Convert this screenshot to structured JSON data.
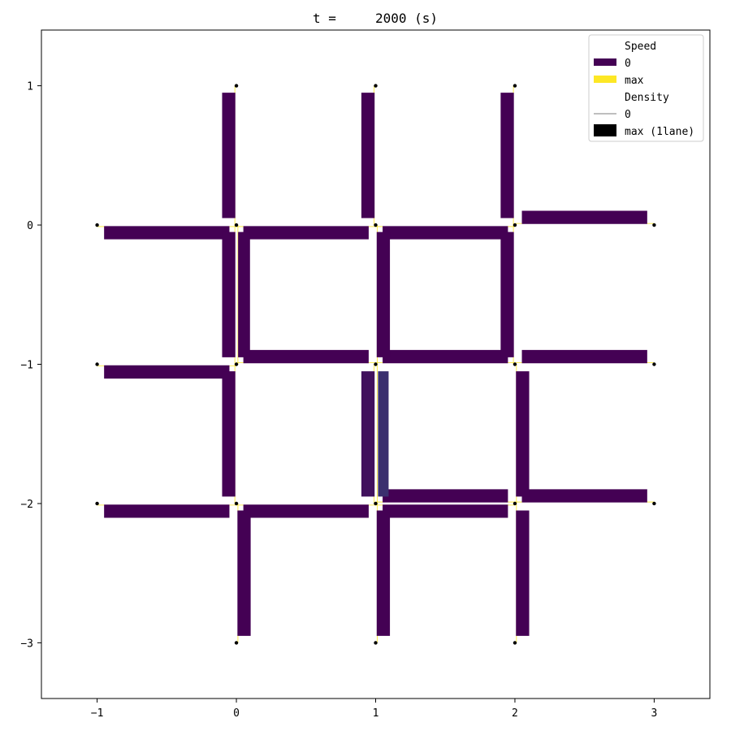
{
  "chart_data": {
    "type": "network",
    "title": "t =     2000 (s)",
    "xlim": [
      -1.4,
      3.4
    ],
    "ylim": [
      -3.4,
      1.4
    ],
    "x_ticks": [
      -1,
      0,
      1,
      2,
      3
    ],
    "y_ticks": [
      -3,
      -2,
      -1,
      0,
      1
    ],
    "grid": false,
    "legend": {
      "placement": "top-right",
      "speed_header": "Speed",
      "speed_min_label": "0",
      "speed_max_label": "max",
      "density_header": "Density",
      "density_min_label": "0",
      "density_max_label": "max (1lane)"
    },
    "colors": {
      "speed_zero": "#440154",
      "speed_mid": "#31688e",
      "speed_high": "#35b779",
      "speed_max": "#fde725",
      "node": "#000000",
      "density_max": "#000000"
    },
    "nodes": [
      [
        0,
        1
      ],
      [
        1,
        1
      ],
      [
        2,
        1
      ],
      [
        -1,
        0
      ],
      [
        0,
        0
      ],
      [
        1,
        0
      ],
      [
        2,
        0
      ],
      [
        3,
        0
      ],
      [
        -1,
        -1
      ],
      [
        0,
        -1
      ],
      [
        1,
        -1
      ],
      [
        2,
        -1
      ],
      [
        3,
        -1
      ],
      [
        -1,
        -2
      ],
      [
        0,
        -2
      ],
      [
        1,
        -2
      ],
      [
        2,
        -2
      ],
      [
        3,
        -2
      ],
      [
        0,
        -3
      ],
      [
        1,
        -3
      ],
      [
        2,
        -3
      ]
    ],
    "links": [
      {
        "from": [
          -1,
          0
        ],
        "to": [
          0,
          0
        ],
        "density": 1.0,
        "speed": 0.0
      },
      {
        "from": [
          0,
          0
        ],
        "to": [
          1,
          0
        ],
        "density": 1.0,
        "speed": 0.0
      },
      {
        "from": [
          1,
          0
        ],
        "to": [
          2,
          0
        ],
        "density": 1.0,
        "speed": 0.0
      },
      {
        "from": [
          3,
          0
        ],
        "to": [
          2,
          0
        ],
        "density": 1.0,
        "speed": 0.0
      },
      {
        "from": [
          -1,
          -1
        ],
        "to": [
          0,
          -1
        ],
        "density": 1.0,
        "speed": 0.0
      },
      {
        "from": [
          1,
          -1
        ],
        "to": [
          0,
          -1
        ],
        "density": 1.0,
        "speed": 0.0
      },
      {
        "from": [
          2,
          -1
        ],
        "to": [
          1,
          -1
        ],
        "density": 1.0,
        "speed": 0.0
      },
      {
        "from": [
          3,
          -1
        ],
        "to": [
          2,
          -1
        ],
        "density": 1.0,
        "speed": 0.0
      },
      {
        "from": [
          -1,
          -2
        ],
        "to": [
          0,
          -2
        ],
        "density": 1.0,
        "speed": 0.0
      },
      {
        "from": [
          0,
          -2
        ],
        "to": [
          1,
          -2
        ],
        "density": 1.0,
        "speed": 0.0
      },
      {
        "from": [
          1,
          -2
        ],
        "to": [
          2,
          -2
        ],
        "density": 1.0,
        "speed": 0.0
      },
      {
        "from": [
          2,
          -2
        ],
        "to": [
          1,
          -2
        ],
        "density": 1.0,
        "speed": 0.0
      },
      {
        "from": [
          3,
          -2
        ],
        "to": [
          2,
          -2
        ],
        "density": 1.0,
        "speed": 0.0
      },
      {
        "from": [
          0,
          1
        ],
        "to": [
          0,
          0
        ],
        "density": 1.0,
        "speed": 0.0
      },
      {
        "from": [
          1,
          1
        ],
        "to": [
          1,
          0
        ],
        "density": 1.0,
        "speed": 0.0
      },
      {
        "from": [
          2,
          1
        ],
        "to": [
          2,
          0
        ],
        "density": 1.0,
        "speed": 0.0
      },
      {
        "from": [
          0,
          0
        ],
        "to": [
          0,
          -1
        ],
        "density": 1.0,
        "speed": 0.0
      },
      {
        "from": [
          0,
          -1
        ],
        "to": [
          0,
          0
        ],
        "density": 0.9,
        "speed": 0.0
      },
      {
        "from": [
          1,
          -1
        ],
        "to": [
          1,
          0
        ],
        "density": 1.0,
        "speed": 0.0
      },
      {
        "from": [
          2,
          0
        ],
        "to": [
          2,
          -1
        ],
        "density": 1.0,
        "speed": 0.0
      },
      {
        "from": [
          0,
          -1
        ],
        "to": [
          0,
          -2
        ],
        "density": 1.0,
        "speed": 0.0
      },
      {
        "from": [
          1,
          -1
        ],
        "to": [
          1,
          -2
        ],
        "density": 1.0,
        "speed": 0.05
      },
      {
        "from": [
          1,
          -2
        ],
        "to": [
          1,
          -1
        ],
        "density": 0.8,
        "speed": 0.15
      },
      {
        "from": [
          2,
          -2
        ],
        "to": [
          2,
          -1
        ],
        "density": 1.0,
        "speed": 0.0
      },
      {
        "from": [
          0,
          -3
        ],
        "to": [
          0,
          -2
        ],
        "density": 1.0,
        "speed": 0.0
      },
      {
        "from": [
          1,
          -3
        ],
        "to": [
          1,
          -2
        ],
        "density": 1.0,
        "speed": 0.0
      },
      {
        "from": [
          2,
          -3
        ],
        "to": [
          2,
          -2
        ],
        "density": 1.0,
        "speed": 0.0
      }
    ]
  }
}
